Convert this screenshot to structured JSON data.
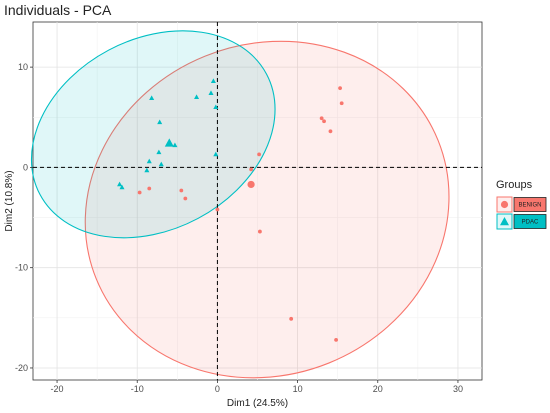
{
  "chart_data": {
    "type": "scatter",
    "title": "Individuals - PCA",
    "xlabel": "Dim1 (24.5%)",
    "ylabel": "Dim2 (10.8%)",
    "xlim": [
      -23,
      33
    ],
    "ylim": [
      -21.2,
      14.5
    ],
    "x_ticks": [
      -20,
      -10,
      0,
      10,
      20,
      30
    ],
    "y_ticks": [
      -20,
      -10,
      0,
      10
    ],
    "grid": true,
    "reference_lines": {
      "x": 0,
      "y": 0
    },
    "legend": {
      "title": "Groups",
      "placement": "right",
      "entries": [
        "BENIGN",
        "PDAC"
      ]
    },
    "series": [
      {
        "name": "BENIGN",
        "color": "#F8766D",
        "marker": "circle",
        "points": [
          [
            15.3,
            7.9
          ],
          [
            15.5,
            6.4
          ],
          [
            13.0,
            4.9
          ],
          [
            13.3,
            4.6
          ],
          [
            14.1,
            3.6
          ],
          [
            5.2,
            1.3
          ],
          [
            4.2,
            -0.2
          ],
          [
            5.3,
            -6.4
          ],
          [
            0.0,
            -4.2
          ],
          [
            -4.5,
            -2.3
          ],
          [
            -4.0,
            -3.1
          ],
          [
            -8.5,
            -2.1
          ],
          [
            -9.7,
            -2.5
          ],
          [
            9.2,
            -15.1
          ],
          [
            14.8,
            -17.2
          ]
        ],
        "centroid": [
          4.2,
          -1.7
        ],
        "ellipse": {
          "center": [
            6.2,
            -4.2
          ],
          "rx": 23.0,
          "ry": 16.5,
          "rotation_deg": 22
        }
      },
      {
        "name": "PDAC",
        "color": "#00BFC4",
        "marker": "triangle",
        "points": [
          [
            -0.5,
            8.6
          ],
          [
            -0.8,
            7.4
          ],
          [
            -8.2,
            6.9
          ],
          [
            -2.6,
            7.0
          ],
          [
            -0.2,
            6.0
          ],
          [
            -7.2,
            4.5
          ],
          [
            -5.3,
            2.2
          ],
          [
            -7.3,
            1.5
          ],
          [
            -7.0,
            0.3
          ],
          [
            -8.5,
            0.6
          ],
          [
            -8.8,
            -0.3
          ],
          [
            -0.2,
            1.3
          ],
          [
            -12.2,
            -1.7
          ],
          [
            -11.9,
            -2.0
          ]
        ],
        "centroid": [
          -6.0,
          2.4
        ],
        "ellipse": {
          "center": [
            -8.0,
            3.3
          ],
          "rx": 16.0,
          "ry": 9.5,
          "rotation_deg": 28
        }
      }
    ]
  }
}
